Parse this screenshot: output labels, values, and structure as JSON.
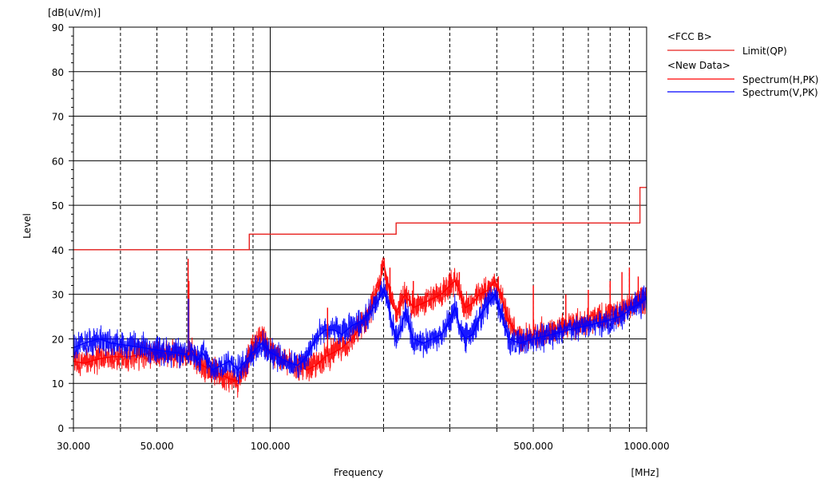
{
  "chart_data": {
    "type": "line",
    "title": "",
    "xlabel": "Frequency",
    "xunit": "[MHz]",
    "ylabel": "Level",
    "yunit": "[dB(uV/m)]",
    "xscale": "log",
    "xlim": [
      30,
      1000
    ],
    "ylim": [
      0,
      90
    ],
    "grid": true,
    "legend_position": "top-right",
    "x_tick_labels": [
      {
        "value": 30,
        "label": "30.000"
      },
      {
        "value": 50,
        "label": "50.000"
      },
      {
        "value": 100,
        "label": "100.000"
      },
      {
        "value": 500,
        "label": "500.000"
      },
      {
        "value": 1000,
        "label": "1000.000"
      }
    ],
    "y_tick_labels": [
      {
        "value": 0,
        "label": "0"
      },
      {
        "value": 10,
        "label": "10"
      },
      {
        "value": 20,
        "label": "20"
      },
      {
        "value": 30,
        "label": "30"
      },
      {
        "value": 40,
        "label": "40"
      },
      {
        "value": 50,
        "label": "50"
      },
      {
        "value": 60,
        "label": "60"
      },
      {
        "value": 70,
        "label": "70"
      },
      {
        "value": 80,
        "label": "80"
      },
      {
        "value": 90,
        "label": "90"
      }
    ],
    "legend_groups": [
      {
        "header": "<FCC B>",
        "entries": [
          {
            "name": "Limit(QP)",
            "color": "#e8201e"
          }
        ]
      },
      {
        "header": "<New Data>",
        "entries": [
          {
            "name": "Spectrum(H,PK)",
            "color": "#ff0000"
          },
          {
            "name": "Spectrum(V,PK)",
            "color": "#0000ff"
          }
        ]
      }
    ],
    "series": [
      {
        "name": "Limit(QP)",
        "color": "#e8201e",
        "step": true,
        "x": [
          30,
          88,
          88,
          216,
          216,
          960,
          960,
          1000
        ],
        "y": [
          40,
          40,
          43.5,
          43.5,
          46,
          46,
          54,
          54
        ]
      },
      {
        "name": "Spectrum(H,PK)",
        "color": "#ff0000",
        "x": [
          30,
          32,
          35,
          38,
          42,
          46,
          50,
          55,
          60,
          62,
          64,
          66,
          70,
          74,
          78,
          82,
          86,
          90,
          95,
          100,
          110,
          118,
          125,
          132,
          140,
          148,
          155,
          165,
          175,
          185,
          195,
          200,
          205,
          210,
          216,
          222,
          228,
          240,
          255,
          270,
          285,
          300,
          310,
          320,
          330,
          345,
          360,
          380,
          395,
          410,
          430,
          460,
          500,
          560,
          620,
          700,
          780,
          850,
          920,
          1000
        ],
        "y": [
          15,
          14.5,
          15.5,
          16,
          16,
          16.5,
          17,
          16.5,
          16,
          17,
          15,
          14,
          13,
          12,
          11,
          10.5,
          14,
          18,
          21,
          17,
          15,
          14,
          13,
          14,
          16,
          17,
          18,
          20,
          23,
          27,
          32,
          37,
          33,
          28,
          26,
          28,
          30,
          27,
          28,
          29,
          30,
          32,
          33,
          30,
          27,
          28,
          30,
          31,
          33,
          30,
          24,
          20,
          21,
          22,
          23,
          24,
          25,
          26,
          28,
          29
        ]
      },
      {
        "name": "Spectrum(V,PK)",
        "color": "#0000ff",
        "x": [
          30,
          32,
          35,
          38,
          42,
          46,
          50,
          55,
          60,
          62,
          64,
          66,
          70,
          74,
          78,
          82,
          86,
          90,
          95,
          100,
          110,
          118,
          125,
          132,
          140,
          148,
          155,
          165,
          175,
          185,
          195,
          200,
          205,
          210,
          216,
          222,
          228,
          240,
          255,
          270,
          285,
          300,
          310,
          320,
          330,
          345,
          360,
          380,
          395,
          410,
          430,
          460,
          500,
          560,
          620,
          700,
          780,
          850,
          920,
          1000
        ],
        "y": [
          18,
          19,
          20,
          19,
          18.5,
          18,
          17.5,
          17,
          16.5,
          18,
          15,
          17,
          13,
          14,
          15,
          13,
          15,
          17,
          19,
          17,
          15,
          14,
          16,
          20,
          22,
          22,
          21,
          23,
          24,
          26,
          29,
          31,
          28,
          24,
          20,
          22,
          26,
          20,
          19,
          20,
          21,
          24,
          27,
          22,
          20,
          21,
          25,
          28,
          30,
          26,
          20,
          19,
          20,
          21,
          22,
          23,
          24,
          25,
          27,
          29
        ]
      }
    ],
    "spikes": [
      {
        "series": "Spectrum(H,PK)",
        "x": 60.5,
        "y": 38
      },
      {
        "series": "Spectrum(H,PK)",
        "x": 60.8,
        "y": 33
      },
      {
        "series": "Spectrum(V,PK)",
        "x": 60.6,
        "y": 29
      },
      {
        "series": "Spectrum(H,PK)",
        "x": 142,
        "y": 27
      },
      {
        "series": "Spectrum(H,PK)",
        "x": 208,
        "y": 36
      },
      {
        "series": "Spectrum(H,PK)",
        "x": 240,
        "y": 33
      },
      {
        "series": "Spectrum(H,PK)",
        "x": 300,
        "y": 34
      },
      {
        "series": "Spectrum(H,PK)",
        "x": 318,
        "y": 35
      },
      {
        "series": "Spectrum(H,PK)",
        "x": 380,
        "y": 33
      },
      {
        "series": "Spectrum(H,PK)",
        "x": 500,
        "y": 32
      },
      {
        "series": "Spectrum(H,PK)",
        "x": 610,
        "y": 30
      },
      {
        "series": "Spectrum(H,PK)",
        "x": 700,
        "y": 31
      },
      {
        "series": "Spectrum(H,PK)",
        "x": 800,
        "y": 33
      },
      {
        "series": "Spectrum(H,PK)",
        "x": 860,
        "y": 35
      },
      {
        "series": "Spectrum(H,PK)",
        "x": 900,
        "y": 36
      },
      {
        "series": "Spectrum(H,PK)",
        "x": 950,
        "y": 34
      }
    ]
  }
}
